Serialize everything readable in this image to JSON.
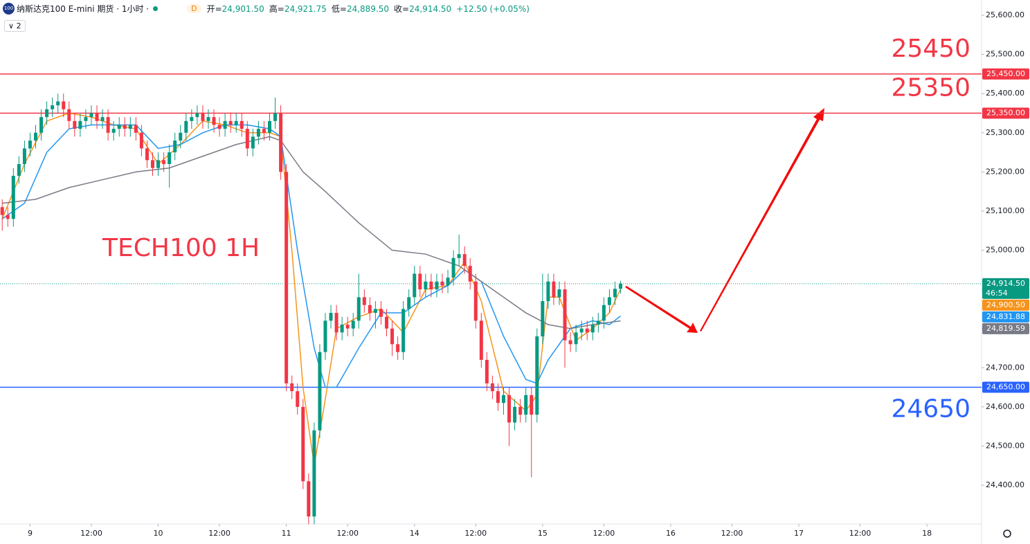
{
  "header": {
    "logo": "100",
    "title": "纳斯达克100 E-mini 期货 · 1小时 ·",
    "badge": "D",
    "ohlc": [
      {
        "label": "开=",
        "value": "24,901.50"
      },
      {
        "label": "高=",
        "value": "24,921.75"
      },
      {
        "label": "低=",
        "value": "24,889.50"
      },
      {
        "label": "收=",
        "value": "24,914.50"
      }
    ],
    "change": "+12.50 (+0.05%)",
    "indicator_count": 2
  },
  "chart_data": {
    "type": "candlestick",
    "annotation": "TECH100 1H",
    "up_color": "#089981",
    "down_color": "#f23645",
    "open": [
      25110,
      25090,
      25080,
      25190,
      25220,
      25260,
      25280,
      25300,
      25340,
      25360,
      25370,
      25380,
      25360,
      25330,
      25310,
      25330,
      25340,
      25350,
      25330,
      25340,
      25300,
      25310,
      25320,
      25310,
      25320,
      25300,
      25260,
      25230,
      25210,
      25230,
      25220,
      25250,
      25280,
      25300,
      25330,
      25340,
      25350,
      25330,
      25340,
      25320,
      25310,
      25330,
      25320,
      25330,
      25310,
      25260,
      25290,
      25310,
      25300,
      25330,
      25350,
      25200,
      24660,
      24640,
      24600,
      24410,
      24320,
      24540,
      24740,
      24820,
      24840,
      24790,
      24810,
      24800,
      24820,
      24880,
      24860,
      24840,
      24850,
      24830,
      24800,
      24760,
      24740,
      24850,
      24880,
      24940,
      24900,
      24920,
      24900,
      24920,
      24910,
      24930,
      24980,
      24990,
      24960,
      24920,
      24820,
      24720,
      24660,
      24640,
      24610,
      24630,
      24560,
      24600,
      24580,
      24630,
      24580,
      24780,
      24870,
      24920,
      24880,
      24900,
      24770,
      24760,
      24790,
      24800,
      24790,
      24810,
      24820,
      24860,
      24880,
      24901.5
    ],
    "high": [
      25130,
      25110,
      25210,
      25240,
      25280,
      25300,
      25320,
      25360,
      25380,
      25390,
      25400,
      25400,
      25380,
      25350,
      25350,
      25360,
      25370,
      25370,
      25360,
      25360,
      25330,
      25340,
      25340,
      25340,
      25340,
      25320,
      25280,
      25250,
      25250,
      25250,
      25270,
      25300,
      25320,
      25350,
      25360,
      25370,
      25370,
      25360,
      25360,
      25340,
      25350,
      25350,
      25350,
      25350,
      25330,
      25310,
      25330,
      25330,
      25350,
      25390,
      25370,
      25220,
      24680,
      24660,
      24620,
      24430,
      24560,
      24760,
      24840,
      24860,
      24860,
      24830,
      24830,
      24840,
      24940,
      24900,
      24880,
      24870,
      24870,
      24850,
      24820,
      24780,
      24870,
      24900,
      24960,
      24960,
      24940,
      24940,
      24940,
      24940,
      24950,
      25000,
      25040,
      25010,
      24980,
      24940,
      24840,
      24740,
      24680,
      24660,
      24650,
      24650,
      24620,
      24620,
      24650,
      24650,
      24800,
      24940,
      24940,
      24940,
      24920,
      24920,
      24790,
      24810,
      24820,
      24820,
      24830,
      24840,
      24880,
      24900,
      24920,
      24921.75
    ],
    "low": [
      25050,
      25060,
      25060,
      25170,
      25200,
      25240,
      25260,
      25280,
      25320,
      25340,
      25350,
      25340,
      25310,
      25290,
      25290,
      25310,
      25320,
      25310,
      25310,
      25280,
      25280,
      25290,
      25290,
      25290,
      25280,
      25240,
      25210,
      25190,
      25190,
      25200,
      25160,
      25230,
      25260,
      25280,
      25310,
      25320,
      25310,
      25310,
      25300,
      25290,
      25290,
      25300,
      25300,
      25290,
      25240,
      25240,
      25270,
      25280,
      25280,
      25310,
      25180,
      24640,
      24620,
      24580,
      24390,
      24300,
      24300,
      24520,
      24720,
      24800,
      24770,
      24770,
      24780,
      24780,
      24800,
      24840,
      24820,
      24800,
      24810,
      24780,
      24730,
      24720,
      24720,
      24830,
      24860,
      24880,
      24880,
      24880,
      24880,
      24890,
      24890,
      24910,
      24960,
      24940,
      24900,
      24800,
      24700,
      24640,
      24620,
      24590,
      24580,
      24500,
      24540,
      24560,
      24560,
      24420,
      24560,
      24760,
      24850,
      24860,
      24860,
      24700,
      24740,
      24740,
      24770,
      24770,
      24770,
      24790,
      24800,
      24840,
      24860,
      24889.5
    ],
    "close": [
      25090,
      25080,
      25190,
      25220,
      25260,
      25280,
      25300,
      25340,
      25360,
      25370,
      25380,
      25360,
      25330,
      25310,
      25330,
      25340,
      25350,
      25330,
      25340,
      25300,
      25310,
      25320,
      25310,
      25320,
      25300,
      25260,
      25230,
      25210,
      25230,
      25220,
      25250,
      25280,
      25300,
      25330,
      25340,
      25350,
      25330,
      25340,
      25320,
      25310,
      25330,
      25320,
      25330,
      25310,
      25260,
      25290,
      25310,
      25300,
      25330,
      25350,
      25200,
      24660,
      24640,
      24600,
      24410,
      24320,
      24540,
      24740,
      24820,
      24840,
      24790,
      24810,
      24800,
      24820,
      24880,
      24860,
      24840,
      24850,
      24830,
      24800,
      24760,
      24740,
      24850,
      24880,
      24940,
      24900,
      24920,
      24900,
      24920,
      24910,
      24930,
      24980,
      24990,
      24960,
      24920,
      24820,
      24720,
      24660,
      24640,
      24610,
      24630,
      24560,
      24600,
      24580,
      24630,
      24580,
      24780,
      24870,
      24920,
      24880,
      24900,
      24770,
      24760,
      24790,
      24800,
      24790,
      24810,
      24820,
      24860,
      24880,
      24901.5,
      24914.5
    ],
    "lines": [
      {
        "color": "#f7931a",
        "x": [
          0,
          4,
          8,
          12,
          16,
          20,
          24,
          28,
          32,
          36,
          40,
          44,
          48,
          50,
          52,
          54,
          56,
          58,
          60,
          64,
          68,
          72,
          76,
          80,
          83,
          86,
          90,
          94,
          96,
          98,
          100,
          103,
          106,
          109,
          111
        ],
        "values": [
          25080,
          25220,
          25330,
          25350,
          25340,
          25320,
          25310,
          25220,
          25270,
          25330,
          25320,
          25300,
          25300,
          25290,
          25000,
          24650,
          24450,
          24620,
          24800,
          24830,
          24850,
          24790,
          24900,
          24910,
          24970,
          24870,
          24640,
          24590,
          24630,
          24880,
          24880,
          24770,
          24800,
          24840,
          24900.5
        ]
      },
      {
        "color": "#2196f3",
        "x": [
          0,
          4,
          8,
          12,
          16,
          20,
          24,
          28,
          32,
          36,
          40,
          44,
          48,
          50,
          53,
          56,
          58,
          60,
          64,
          68,
          72,
          76,
          80,
          83,
          86,
          90,
          94,
          96,
          98,
          102,
          106,
          109,
          111
        ],
        "values": [
          25080,
          25120,
          25250,
          25310,
          25320,
          25320,
          25320,
          25260,
          25270,
          25300,
          25320,
          25320,
          25310,
          25290,
          25000,
          24750,
          24650,
          24650,
          24750,
          24840,
          24840,
          24880,
          24910,
          24950,
          24920,
          24780,
          24670,
          24660,
          24720,
          24800,
          24820,
          24810,
          24831.88
        ]
      },
      {
        "color": "#787b86",
        "x": [
          0,
          6,
          12,
          18,
          24,
          30,
          36,
          42,
          48,
          50,
          54,
          58,
          64,
          70,
          76,
          82,
          86,
          90,
          94,
          98,
          102,
          106,
          111
        ],
        "values": [
          25120,
          25130,
          25160,
          25180,
          25200,
          25210,
          25240,
          25270,
          25290,
          25280,
          25200,
          25150,
          25070,
          25000,
          24990,
          24960,
          24920,
          24880,
          24840,
          24810,
          24800,
          24810,
          24819.59
        ]
      }
    ],
    "hlines": [
      {
        "value": 25450,
        "tag": "25,450.00",
        "color": "#f23645"
      },
      {
        "value": 25350,
        "tag": "25,350.00",
        "color": "#f23645"
      },
      {
        "value": 24650,
        "tag": "24,650.00",
        "color": "#2962ff"
      }
    ],
    "price_tags": [
      {
        "value": 24914.5,
        "label": "24,914.50",
        "sub": "46:54",
        "color": "#089981"
      },
      {
        "value": 24900.5,
        "label": "24,900.50",
        "color": "#f7931a"
      },
      {
        "value": 24831.88,
        "label": "24,831.88",
        "color": "#2196f3"
      },
      {
        "value": 24819.59,
        "label": "24,819.59",
        "color": "#787b86"
      }
    ],
    "xlim": [
      -0.4,
      175.8
    ],
    "ylim": [
      24301,
      25639
    ],
    "xticks": [
      {
        "value": 5,
        "label": "9"
      },
      {
        "value": 16,
        "label": "12:00"
      },
      {
        "value": 28,
        "label": "10"
      },
      {
        "value": 39,
        "label": "12:00"
      },
      {
        "value": 51,
        "label": "11"
      },
      {
        "value": 62,
        "label": "12:00"
      },
      {
        "value": 74,
        "label": "14"
      },
      {
        "value": 85,
        "label": "12:00"
      },
      {
        "value": 97,
        "label": "15"
      },
      {
        "value": 108,
        "label": "12:00"
      },
      {
        "value": 120,
        "label": "16"
      },
      {
        "value": 131,
        "label": "12:00"
      },
      {
        "value": 143,
        "label": "17"
      },
      {
        "value": 154,
        "label": "12:00"
      },
      {
        "value": 166,
        "label": "18"
      }
    ],
    "yticks": [
      {
        "value": 24400,
        "label": "24,400.00"
      },
      {
        "value": 24500,
        "label": "24,500.00"
      },
      {
        "value": 24600,
        "label": "24,600.00"
      },
      {
        "value": 24700,
        "label": "24,700.00"
      },
      {
        "value": 24800,
        "label": "24,800.00"
      },
      {
        "value": 24900,
        "label": "24,900.00"
      },
      {
        "value": 25000,
        "label": "25,000.00"
      },
      {
        "value": 25100,
        "label": "25,100.00"
      },
      {
        "value": 25200,
        "label": "25,200.00"
      },
      {
        "value": 25300,
        "label": "25,300.00"
      },
      {
        "value": 25400,
        "label": "25,400.00"
      },
      {
        "value": 25500,
        "label": "25,500.00"
      },
      {
        "value": 25600,
        "label": "25,600.00"
      }
    ]
  }
}
